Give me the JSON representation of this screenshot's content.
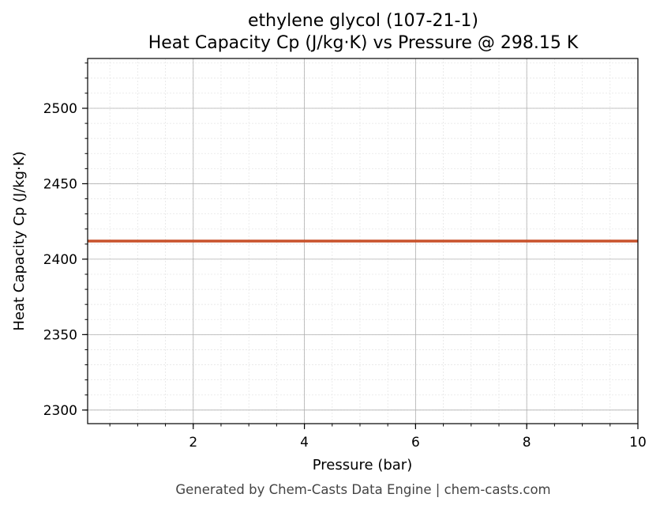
{
  "chart_data": {
    "type": "line",
    "title": "ethylene glycol (107-21-1)",
    "subtitle": "Heat Capacity Cp (J/kg·K) vs Pressure @ 298.15 K",
    "xlabel": "Pressure (bar)",
    "ylabel": "Heat Capacity Cp (J/kg·K)",
    "xlim": [
      0.1,
      10
    ],
    "ylim": [
      2291,
      2533
    ],
    "x_ticks": [
      2,
      4,
      6,
      8,
      10
    ],
    "y_ticks": [
      2300,
      2350,
      2400,
      2450,
      2500
    ],
    "x_minor_step": 0.5,
    "y_minor_step": 10,
    "grid": true,
    "minor_grid": true,
    "series": [
      {
        "color": "#c8522b",
        "x": [
          0.1,
          1,
          2,
          3,
          4,
          5,
          6,
          7,
          8,
          9,
          10
        ],
        "y": [
          2412,
          2412,
          2412,
          2412,
          2412,
          2412,
          2412,
          2412,
          2412,
          2412,
          2412
        ]
      }
    ]
  },
  "footer": "Generated by Chem-Casts Data Engine | chem-casts.com"
}
